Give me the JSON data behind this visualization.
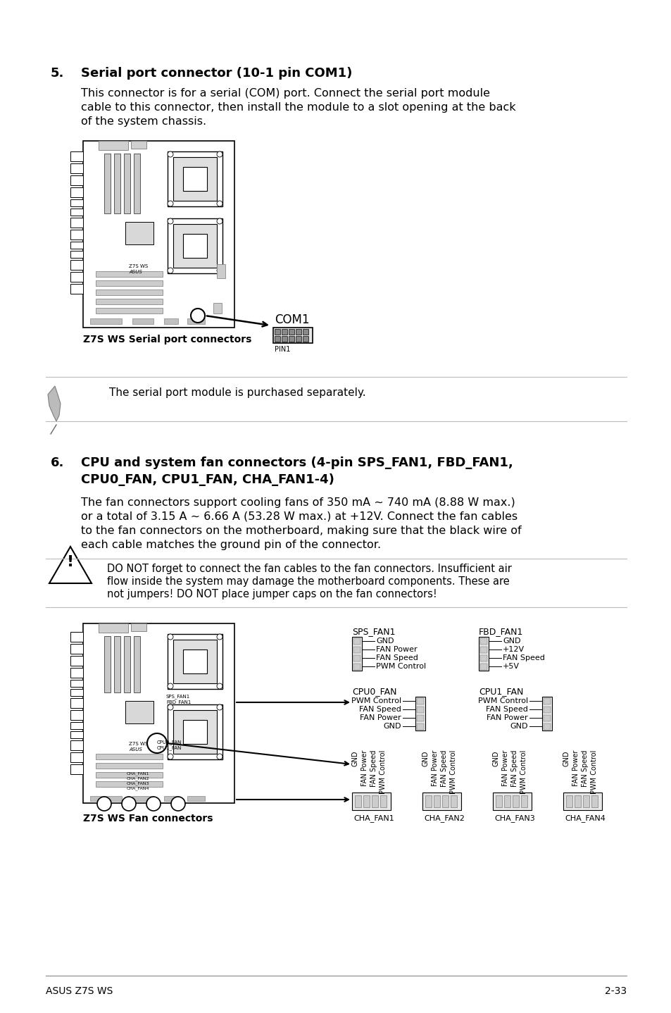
{
  "page_bg": "#ffffff",
  "section5_num": "5.",
  "section5_title": "Serial port connector (10-1 pin COM1)",
  "section5_body1": "This connector is for a serial (COM) port. Connect the serial port module",
  "section5_body2": "cable to this connector, then install the module to a slot opening at the back",
  "section5_body3": "of the system chassis.",
  "note5_text": "The serial port module is purchased separately.",
  "section6_num": "6.",
  "section6_title1": "CPU and system fan connectors (4-pin SPS_FAN1, FBD_FAN1,",
  "section6_title2": "CPU0_FAN, CPU1_FAN, CHA_FAN1-4)",
  "section6_body1": "The fan connectors support cooling fans of 350 mA ~ 740 mA (8.88 W max.)",
  "section6_body2": "or a total of 3.15 A ~ 6.66 A (53.28 W max.) at +12V. Connect the fan cables",
  "section6_body3": "to the fan connectors on the motherboard, making sure that the black wire of",
  "section6_body4": "each cable matches the ground pin of the connector.",
  "warning_text1": "DO NOT forget to connect the fan cables to the fan connectors. Insufficient air",
  "warning_text2": "flow inside the system may damage the motherboard components. These are",
  "warning_text3": "not jumpers! DO NOT place jumper caps on the fan connectors!",
  "label_z7s_serial": "Z7S WS Serial port connectors",
  "label_com1": "COM1",
  "label_pin1": "PIN1",
  "label_z7s_fan": "Z7S WS Fan connectors",
  "sps_fan1_title": "SPS_FAN1",
  "sps_fan1_labels": [
    "GND",
    "FAN Power",
    "FAN Speed",
    "PWM Control"
  ],
  "fbd_fan1_title": "FBD_FAN1",
  "fbd_fan1_labels": [
    "GND",
    "+12V",
    "FAN Speed",
    "+5V"
  ],
  "cpu0_fan_title": "CPU0_FAN",
  "cpu0_fan_labels": [
    "PWM Control",
    "FAN Speed",
    "FAN Power",
    "GND"
  ],
  "cpu1_fan_title": "CPU1_FAN",
  "cpu1_fan_labels": [
    "PWM Control",
    "FAN Speed",
    "FAN Power",
    "GND"
  ],
  "cha_fan_vlabels": [
    "GND",
    "FAN Power",
    "FAN Speed",
    "PWM Control"
  ],
  "cha_fan_names": [
    "CHA_FAN1",
    "CHA_FAN2",
    "CHA_FAN3",
    "CHA_FAN4"
  ],
  "footer_left": "ASUS Z7S WS",
  "footer_right": "2-33"
}
